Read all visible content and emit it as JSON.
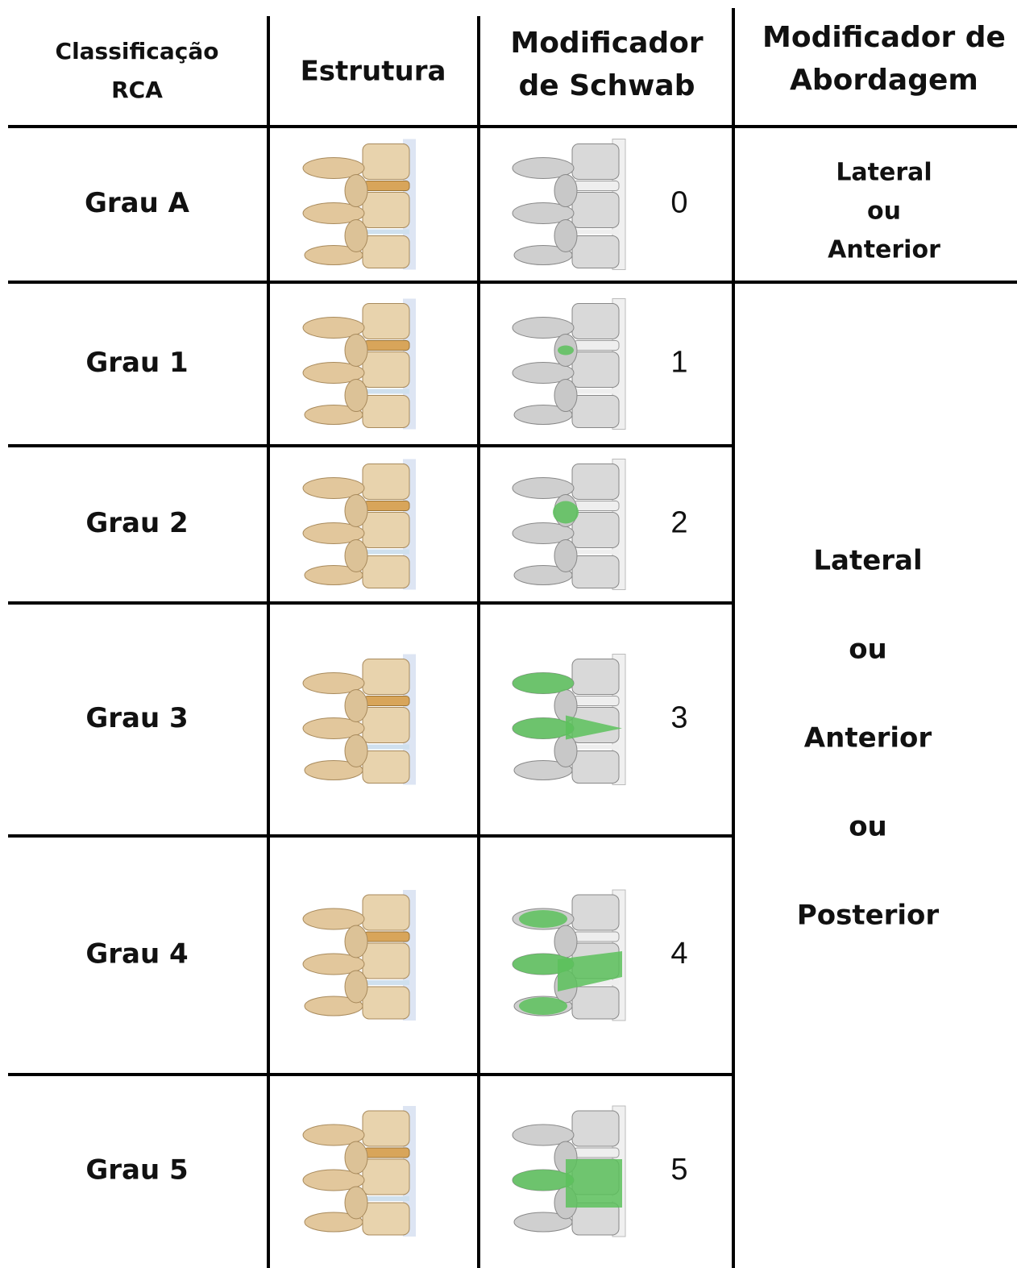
{
  "table": {
    "headers": [
      [
        "Classificação",
        "RCA"
      ],
      [
        "Estrutura"
      ],
      [
        "Modificador",
        "de Schwab"
      ],
      [
        "Modificador de",
        "Abordagem"
      ]
    ],
    "rows": [
      {
        "grade": "Grau A",
        "schwab": 0
      },
      {
        "grade": "Grau 1",
        "schwab": 1
      },
      {
        "grade": "Grau 2",
        "schwab": 2
      },
      {
        "grade": "Grau 3",
        "schwab": 3
      },
      {
        "grade": "Grau 4",
        "schwab": 4
      },
      {
        "grade": "Grau 5",
        "schwab": 5
      }
    ],
    "approach": [
      [
        "Lateral",
        "ou",
        "Anterior"
      ],
      [
        "Lateral",
        "ou",
        "Anterior",
        "ou",
        "Posterior"
      ]
    ]
  }
}
